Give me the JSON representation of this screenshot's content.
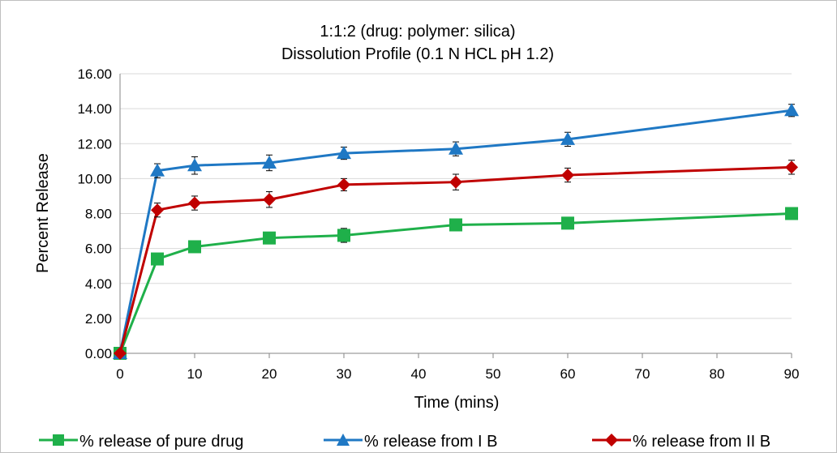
{
  "chart_data": {
    "type": "line",
    "title": "1:1:2 (drug: polymer: silica)",
    "subtitle": "Dissolution Profile (0.1 N HCL pH 1.2)",
    "xlabel": "Time (mins)",
    "ylabel": "Percent Release",
    "xlim": [
      0,
      90
    ],
    "ylim": [
      0,
      16
    ],
    "x_ticks": [
      0,
      10,
      20,
      30,
      40,
      50,
      60,
      70,
      80,
      90
    ],
    "y_ticks": [
      "0.00",
      "2.00",
      "4.00",
      "6.00",
      "8.00",
      "10.00",
      "12.00",
      "14.00",
      "16.00"
    ],
    "grid": "horizontal",
    "legend_position": "bottom",
    "x": [
      0,
      5,
      10,
      20,
      30,
      45,
      60,
      90
    ],
    "series": [
      {
        "name": "% release of pure drug",
        "color": "#1fb04a",
        "marker": "square",
        "values": [
          0.0,
          5.4,
          6.1,
          6.6,
          6.75,
          7.35,
          7.45,
          8.0
        ],
        "error": [
          0.0,
          0.3,
          0.3,
          0.25,
          0.4,
          0.3,
          0.3,
          0.25
        ]
      },
      {
        "name": "% release from I B",
        "color": "#1f78c4",
        "marker": "triangle",
        "values": [
          0.0,
          10.45,
          10.75,
          10.9,
          11.45,
          11.7,
          12.25,
          13.9
        ],
        "error": [
          0.0,
          0.4,
          0.5,
          0.45,
          0.35,
          0.4,
          0.4,
          0.35
        ]
      },
      {
        "name": "% release from II B",
        "color": "#c00000",
        "marker": "diamond",
        "values": [
          0.0,
          8.2,
          8.6,
          8.8,
          9.65,
          9.8,
          10.2,
          10.65
        ],
        "error": [
          0.0,
          0.4,
          0.4,
          0.45,
          0.35,
          0.45,
          0.4,
          0.4
        ]
      }
    ]
  }
}
